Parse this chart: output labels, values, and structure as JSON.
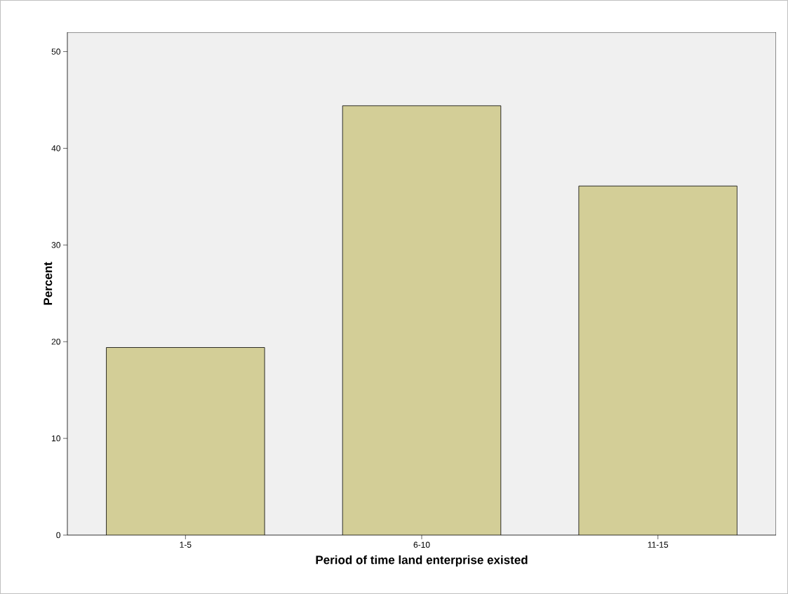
{
  "chart_data": {
    "type": "bar",
    "xlabel": "Period of time land enterprise existed",
    "ylabel": "Percent",
    "categories": [
      "1-5",
      "6-10",
      "11-15"
    ],
    "values": [
      19.4,
      44.4,
      36.1
    ],
    "color": "#d3ce97",
    "ylim": [
      0,
      52
    ],
    "yticks": [
      0,
      10,
      20,
      30,
      40,
      50
    ]
  }
}
